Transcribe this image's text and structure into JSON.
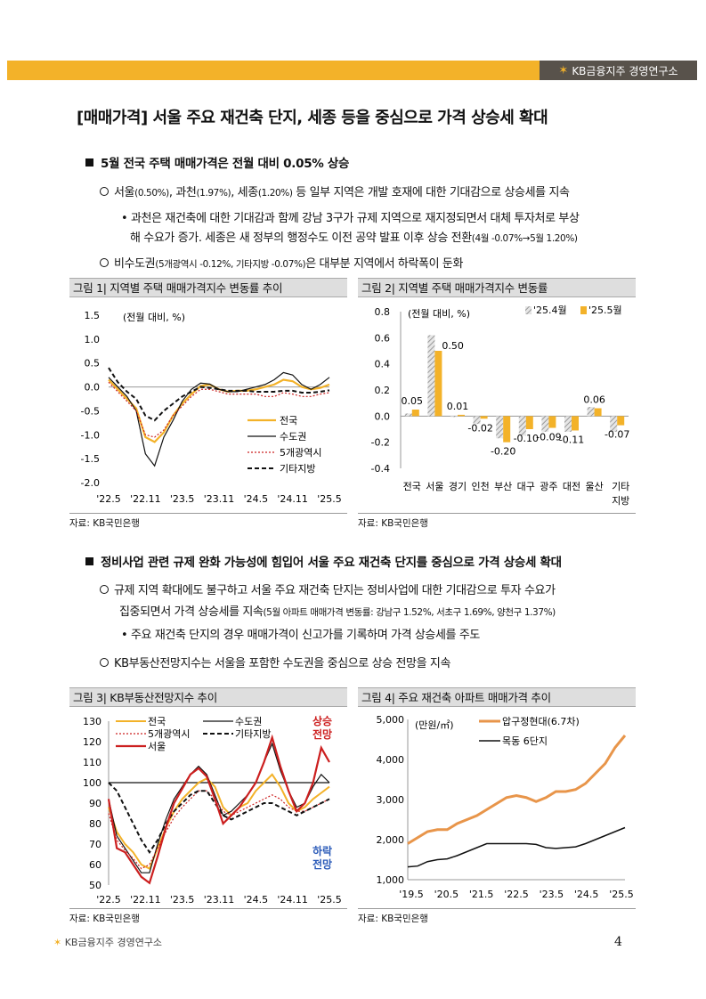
{
  "header": {
    "brand": "KB금융지주 경영연구소"
  },
  "title": "[매매가격] 서울 주요 재건축 단지, 세종 등을 중심으로 가격 상승세 확대",
  "section1": {
    "heading": "5월 전국 주택 매매가격은 전월 대비 0.05% 상승",
    "b1_pre": "서울",
    "b1_a": "(0.50%)",
    "b1_mid": ", 과천",
    "b1_b": "(1.97%)",
    "b1_mid2": ", 세종",
    "b1_c": "(1.20%)",
    "b1_post": " 등 일부 지역은 개발 호재에 대한 기대감으로 상승세를 지속",
    "sub1_line1": "• 과천은 재건축에 대한 기대감과 함께 강남 3구가 규제 지역으로 재지정되면서 대체 투자처로 부상",
    "sub1_line2": "해 수요가 증가. 세종은 새 정부의 행정수도 이전 공약 발표 이후 상승 전환",
    "sub1_small": "(4월 -0.07%→5월 1.20%)",
    "b2_pre": "비수도권",
    "b2_small": "(5개광역시 -0.12%, 기타지방 -0.07%)",
    "b2_post": "은 대부분 지역에서 하락폭이 둔화"
  },
  "fig1": {
    "title": "그림 1| 지역별 주택 매매가격지수 변동률 추이",
    "source": "자료: KB국민은행"
  },
  "fig2": {
    "title": "그림 2| 지역별 주택 매매가격지수 변동률",
    "source": "자료: KB국민은행"
  },
  "section2": {
    "heading": "정비사업 관련 규제 완화 가능성에 힘입어 서울 주요 재건축 단지를 중심으로 가격 상승세 확대",
    "b1_line1": "규제 지역 확대에도 불구하고 서울 주요 재건축 단지는 정비사업에 대한 기대감으로 투자 수요가",
    "b1_line2": "집중되면서 가격 상승세를 지속",
    "b1_small": "(5월 아파트 매매가격 변동률: 강남구 1.52%, 서초구 1.69%, 양천구 1.37%)",
    "sub1": "• 주요 재건축 단지의 경우 매매가격이 신고가를 기록하며 가격 상승세를 주도",
    "b2": "KB부동산전망지수는 서울을 포함한 수도권을 중심으로 상승 전망을 지속"
  },
  "fig3": {
    "title": "그림 3| KB부동산전망지수 추이",
    "source": "자료: KB국민은행"
  },
  "fig4": {
    "title": "그림 4| 주요 재건축 아파트 매매가격 추이",
    "source": "자료: KB국민은행"
  },
  "footer": {
    "brand": "KB금융지주 경영연구소",
    "page": "4"
  },
  "chart_data": [
    {
      "type": "line",
      "unit_label": "(전월 대비, %)",
      "x_ticks": [
        "'22.5",
        "'22.11",
        "'23.5",
        "'23.11",
        "'24.5",
        "'24.11",
        "'25.5"
      ],
      "ylim": [
        -2.0,
        1.5
      ],
      "y_ticks": [
        "1.5",
        "1.0",
        "0.5",
        "0.0",
        "-0.5",
        "-1.0",
        "-1.5",
        "-2.0"
      ],
      "series": [
        {
          "name": "전국",
          "color": "#f3b229",
          "style": "solid",
          "values": [
            0.15,
            -0.05,
            -0.25,
            -0.45,
            -1.05,
            -1.15,
            -0.95,
            -0.6,
            -0.35,
            -0.15,
            0.02,
            0.05,
            -0.05,
            -0.1,
            -0.08,
            -0.08,
            -0.05,
            0.0,
            0.05,
            0.15,
            0.12,
            0.0,
            -0.05,
            -0.02,
            0.05
          ]
        },
        {
          "name": "수도권",
          "color": "#111111",
          "style": "solid",
          "values": [
            0.2,
            0.0,
            -0.2,
            -0.5,
            -1.4,
            -1.65,
            -1.05,
            -0.7,
            -0.3,
            -0.05,
            0.08,
            0.06,
            -0.05,
            -0.1,
            -0.1,
            -0.05,
            0.0,
            0.05,
            0.15,
            0.3,
            0.25,
            0.05,
            -0.05,
            0.05,
            0.2
          ]
        },
        {
          "name": "5개광역시",
          "color": "#cc2222",
          "style": "dotted",
          "values": [
            0.1,
            -0.1,
            -0.3,
            -0.5,
            -1.0,
            -1.05,
            -0.9,
            -0.6,
            -0.4,
            -0.2,
            -0.05,
            -0.05,
            -0.1,
            -0.15,
            -0.15,
            -0.15,
            -0.15,
            -0.2,
            -0.2,
            -0.12,
            -0.15,
            -0.2,
            -0.2,
            -0.15,
            -0.12
          ]
        },
        {
          "name": "기타지방",
          "color": "#111111",
          "style": "dashed",
          "values": [
            0.4,
            0.1,
            -0.1,
            -0.25,
            -0.6,
            -0.7,
            -0.5,
            -0.35,
            -0.2,
            -0.1,
            0.0,
            -0.02,
            -0.05,
            -0.08,
            -0.08,
            -0.08,
            -0.1,
            -0.1,
            -0.1,
            -0.08,
            -0.08,
            -0.12,
            -0.12,
            -0.1,
            -0.07
          ]
        }
      ]
    },
    {
      "type": "bar",
      "unit_label": "(전월 대비, %)",
      "categories": [
        "전국",
        "서울",
        "경기",
        "인천",
        "부산",
        "대구",
        "광주",
        "대전",
        "울산",
        "기타\n지방"
      ],
      "ylim": [
        -0.4,
        0.8
      ],
      "y_ticks": [
        "0.8",
        "0.6",
        "0.4",
        "0.2",
        "0.0",
        "-0.2",
        "-0.4"
      ],
      "series": [
        {
          "name": "'25.4월",
          "color": "#bfbfbf",
          "pattern": "hatch",
          "values": [
            0.02,
            0.62,
            0.0,
            -0.06,
            -0.17,
            -0.15,
            -0.12,
            -0.12,
            0.07,
            -0.12
          ]
        },
        {
          "name": "'25.5월",
          "color": "#f3b229",
          "pattern": "solid",
          "values": [
            0.05,
            0.5,
            0.01,
            -0.02,
            -0.2,
            -0.1,
            -0.09,
            -0.11,
            0.06,
            -0.07
          ]
        }
      ],
      "data_labels": [
        "0.05",
        "0.50",
        "0.01",
        "-0.02",
        "-0.20",
        "-0.10",
        "-0.09",
        "-0.11",
        "0.06",
        "-0.07"
      ]
    },
    {
      "type": "line",
      "x_ticks": [
        "'22.5",
        "'22.11",
        "'23.5",
        "'23.11",
        "'24.5",
        "'24.11",
        "'25.5"
      ],
      "ylim": [
        50,
        130
      ],
      "y_ticks": [
        "130",
        "120",
        "110",
        "100",
        "90",
        "80",
        "70",
        "60",
        "50"
      ],
      "annotations": {
        "up": "상승\n전망",
        "down": "하락\n전망"
      },
      "series": [
        {
          "name": "전국",
          "color": "#f3b229",
          "style": "solid",
          "values": [
            88,
            76,
            70,
            66,
            60,
            58,
            68,
            78,
            86,
            92,
            96,
            100,
            102,
            98,
            88,
            84,
            88,
            90,
            96,
            100,
            104,
            98,
            90,
            86,
            88,
            92,
            95,
            98
          ]
        },
        {
          "name": "수도권",
          "color": "#111111",
          "style": "solid",
          "values": [
            92,
            74,
            68,
            62,
            56,
            56,
            70,
            82,
            92,
            98,
            104,
            108,
            104,
            94,
            84,
            86,
            90,
            94,
            100,
            110,
            119,
            106,
            96,
            88,
            90,
            98,
            104,
            100
          ]
        },
        {
          "name": "5개광역시",
          "color": "#cc2222",
          "style": "dotted",
          "values": [
            85,
            72,
            67,
            63,
            58,
            60,
            68,
            76,
            83,
            88,
            92,
            96,
            96,
            92,
            86,
            84,
            86,
            88,
            90,
            92,
            94,
            92,
            88,
            86,
            86,
            88,
            90,
            92
          ]
        },
        {
          "name": "기타지방",
          "color": "#111111",
          "style": "dashed",
          "values": [
            100,
            96,
            88,
            80,
            72,
            66,
            72,
            80,
            86,
            90,
            94,
            96,
            96,
            90,
            84,
            82,
            84,
            86,
            88,
            90,
            90,
            88,
            86,
            84,
            86,
            88,
            90,
            92
          ]
        },
        {
          "name": "서울",
          "color": "#cc1f1f",
          "style": "solid",
          "values": [
            92,
            68,
            66,
            60,
            54,
            51,
            64,
            78,
            90,
            97,
            104,
            107,
            103,
            92,
            80,
            84,
            88,
            94,
            100,
            110,
            122,
            108,
            96,
            86,
            90,
            100,
            117,
            110
          ]
        }
      ]
    },
    {
      "type": "line",
      "unit_label": "(만원/㎡)",
      "x_ticks": [
        "'19.5",
        "'20.5",
        "'21.5",
        "'22.5",
        "'23.5",
        "'24.5",
        "'25.5"
      ],
      "ylim": [
        1000,
        5000
      ],
      "y_ticks": [
        "5,000",
        "4,000",
        "3,000",
        "2,000",
        "1,000"
      ],
      "series": [
        {
          "name": "압구정현대(6.7차)",
          "color": "#e8954a",
          "style": "solid",
          "values": [
            1900,
            2050,
            2200,
            2250,
            2250,
            2400,
            2500,
            2600,
            2750,
            2900,
            3050,
            3100,
            3050,
            2950,
            3050,
            3200,
            3200,
            3250,
            3400,
            3650,
            3900,
            4300,
            4600
          ]
        },
        {
          "name": "목동 6단지",
          "color": "#111111",
          "style": "solid",
          "values": [
            1320,
            1340,
            1450,
            1500,
            1520,
            1600,
            1700,
            1800,
            1900,
            1900,
            1900,
            1900,
            1900,
            1880,
            1800,
            1780,
            1800,
            1820,
            1900,
            2000,
            2100,
            2200,
            2300
          ]
        }
      ]
    }
  ]
}
